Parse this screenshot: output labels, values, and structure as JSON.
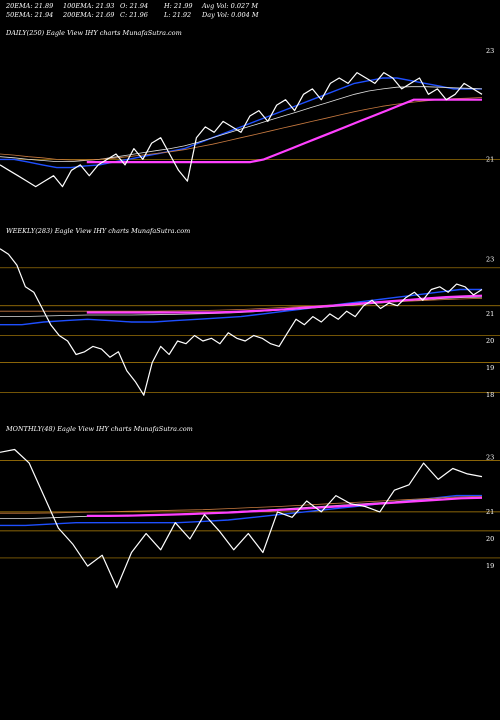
{
  "header": {
    "row1": [
      "20EMA: 21.89",
      "100EMA: 21.93",
      "O: 21.94",
      "H: 21.99",
      "Avg Vol: 0.027  M"
    ],
    "row2": [
      "50EMA: 21.94",
      "200EMA: 21.69",
      "C: 21.96",
      "L: 21.92",
      "Day Vol: 0.004  M"
    ]
  },
  "colors": {
    "background": "#000000",
    "price": "#ffffff",
    "ema_short": "#1e4fff",
    "ema_support": "#ff40ff",
    "ema_mid": "#e0e0e0",
    "ema_long": "#c87a40",
    "level_line": "#b8860b"
  },
  "chart_data": [
    {
      "type": "line",
      "label": "DAILY(250) Eagle   View  IHY charts MunafaSutra.com",
      "ylim": [
        20.4,
        23.2
      ],
      "yticks": [
        {
          "value": 23,
          "label": "23"
        },
        {
          "value": 21,
          "label": "21"
        }
      ],
      "levels": [
        21.0
      ],
      "price": [
        20.9,
        20.8,
        20.7,
        20.6,
        20.5,
        20.6,
        20.7,
        20.5,
        20.8,
        20.9,
        20.7,
        20.9,
        21.0,
        21.1,
        20.9,
        21.2,
        21.0,
        21.3,
        21.4,
        21.1,
        20.8,
        20.6,
        21.4,
        21.6,
        21.5,
        21.7,
        21.6,
        21.5,
        21.8,
        21.9,
        21.7,
        22.0,
        22.1,
        21.9,
        22.2,
        22.3,
        22.1,
        22.4,
        22.5,
        22.4,
        22.6,
        22.5,
        22.4,
        22.6,
        22.5,
        22.3,
        22.4,
        22.5,
        22.2,
        22.3,
        22.1,
        22.2,
        22.4,
        22.3,
        22.2
      ],
      "series": [
        {
          "role": "ema_short",
          "values": [
            21.0,
            21.0,
            20.95,
            20.9,
            20.85,
            20.85,
            20.88,
            20.9,
            20.95,
            21.0,
            21.05,
            21.1,
            21.15,
            21.2,
            21.3,
            21.4,
            21.5,
            21.6,
            21.7,
            21.8,
            21.9,
            22.0,
            22.1,
            22.2,
            22.3,
            22.4,
            22.45,
            22.5,
            22.5,
            22.45,
            22.4,
            22.35,
            22.3,
            22.3,
            22.3
          ]
        },
        {
          "role": "ema_mid",
          "values": [
            21.05,
            21.03,
            21.0,
            20.98,
            20.96,
            20.96,
            20.98,
            21.0,
            21.04,
            21.08,
            21.12,
            21.16,
            21.2,
            21.25,
            21.32,
            21.4,
            21.48,
            21.56,
            21.64,
            21.72,
            21.8,
            21.88,
            21.96,
            22.04,
            22.12,
            22.2,
            22.26,
            22.3,
            22.33,
            22.34,
            22.34,
            22.33,
            22.32,
            22.31,
            22.3
          ]
        },
        {
          "role": "ema_long",
          "values": [
            21.1,
            21.08,
            21.05,
            21.03,
            21.0,
            20.99,
            20.99,
            21.0,
            21.02,
            21.05,
            21.08,
            21.11,
            21.14,
            21.18,
            21.23,
            21.28,
            21.34,
            21.4,
            21.46,
            21.52,
            21.58,
            21.64,
            21.7,
            21.76,
            21.82,
            21.88,
            21.93,
            21.98,
            22.02,
            22.05,
            22.08,
            22.1,
            22.12,
            22.13,
            22.14
          ]
        },
        {
          "role": "ema_support",
          "values": [
            20.95,
            20.95,
            20.95,
            20.95,
            20.95,
            20.95,
            20.95,
            20.95,
            20.95,
            20.95,
            20.95,
            20.95,
            20.95,
            21.0,
            21.1,
            21.2,
            21.3,
            21.4,
            21.5,
            21.6,
            21.7,
            21.8,
            21.9,
            22.0,
            22.1,
            22.1,
            22.1,
            22.1,
            22.1,
            22.1
          ]
        }
      ]
    },
    {
      "type": "line",
      "label": "WEEKLY(283) Eagle   View  IHY charts MunafaSutra.com",
      "ylim": [
        17.6,
        23.8
      ],
      "yticks": [
        {
          "value": 23,
          "label": "23"
        },
        {
          "value": 21,
          "label": "21"
        },
        {
          "value": 20,
          "label": "20"
        },
        {
          "value": 19,
          "label": "19"
        },
        {
          "value": 18,
          "label": "18"
        }
      ],
      "levels": [
        22.7,
        21.3,
        20.2,
        19.2,
        18.1
      ],
      "price": [
        23.4,
        23.2,
        22.8,
        22.0,
        21.8,
        21.2,
        20.6,
        20.2,
        20.0,
        19.5,
        19.6,
        19.8,
        19.7,
        19.4,
        19.6,
        18.9,
        18.5,
        18.0,
        19.2,
        19.8,
        19.5,
        20.0,
        19.9,
        20.2,
        20.0,
        20.1,
        19.9,
        20.3,
        20.1,
        20.0,
        20.2,
        20.1,
        19.9,
        19.8,
        20.3,
        20.8,
        20.6,
        20.9,
        20.7,
        21.0,
        20.8,
        21.1,
        20.9,
        21.3,
        21.5,
        21.2,
        21.4,
        21.3,
        21.6,
        21.8,
        21.5,
        21.9,
        22.0,
        21.8,
        22.1,
        22.0,
        21.7,
        21.9
      ],
      "series": [
        {
          "role": "ema_short",
          "values": [
            20.6,
            20.6,
            20.7,
            20.75,
            20.8,
            20.75,
            20.7,
            20.7,
            20.75,
            20.8,
            20.85,
            20.9,
            21.0,
            21.1,
            21.2,
            21.3,
            21.4,
            21.5,
            21.6,
            21.7,
            21.8,
            21.9,
            21.9
          ]
        },
        {
          "role": "ema_mid",
          "values": [
            20.9,
            20.9,
            20.92,
            20.94,
            20.96,
            20.96,
            20.96,
            20.97,
            20.98,
            21.0,
            21.02,
            21.05,
            21.1,
            21.15,
            21.2,
            21.26,
            21.32,
            21.38,
            21.44,
            21.5,
            21.56,
            21.6,
            21.62
          ]
        },
        {
          "role": "ema_long",
          "values": [
            21.1,
            21.1,
            21.1,
            21.1,
            21.1,
            21.1,
            21.1,
            21.1,
            21.11,
            21.12,
            21.14,
            21.16,
            21.2,
            21.24,
            21.28,
            21.32,
            21.36,
            21.4,
            21.44,
            21.48,
            21.52,
            21.55,
            21.57
          ]
        },
        {
          "role": "ema_support",
          "values": [
            21.05,
            21.05,
            21.05,
            21.05,
            21.05,
            21.05,
            21.05,
            21.05,
            21.07,
            21.1,
            21.13,
            21.17,
            21.22,
            21.27,
            21.32,
            21.37,
            21.42,
            21.47,
            21.52,
            21.57,
            21.62,
            21.65,
            21.67
          ]
        }
      ]
    },
    {
      "type": "line",
      "label": "MONTHLY(48) Eagle   View  IHY charts MunafaSutra.com",
      "ylim": [
        17.6,
        23.8
      ],
      "yticks": [
        {
          "value": 23,
          "label": "23"
        },
        {
          "value": 21,
          "label": "21"
        },
        {
          "value": 20,
          "label": "20"
        },
        {
          "value": 19,
          "label": "19"
        }
      ],
      "levels": [
        22.9,
        21.0,
        20.3,
        19.3
      ],
      "price": [
        23.2,
        23.3,
        22.8,
        21.6,
        20.4,
        19.8,
        19.0,
        19.4,
        18.2,
        19.5,
        20.2,
        19.6,
        20.6,
        20.0,
        20.9,
        20.3,
        19.6,
        20.2,
        19.5,
        21.0,
        20.8,
        21.4,
        21.0,
        21.6,
        21.3,
        21.2,
        21.0,
        21.8,
        22.0,
        22.8,
        22.2,
        22.6,
        22.4,
        22.3
      ],
      "series": [
        {
          "role": "ema_short",
          "values": [
            20.5,
            20.5,
            20.55,
            20.6,
            20.6,
            20.6,
            20.6,
            20.6,
            20.65,
            20.7,
            20.8,
            20.9,
            21.0,
            21.1,
            21.2,
            21.3,
            21.4,
            21.5,
            21.6,
            21.6
          ]
        },
        {
          "role": "ema_mid",
          "values": [
            20.75,
            20.75,
            20.78,
            20.82,
            20.85,
            20.88,
            20.9,
            20.92,
            20.95,
            21.0,
            21.05,
            21.1,
            21.16,
            21.22,
            21.28,
            21.34,
            21.4,
            21.46,
            21.5,
            21.52
          ]
        },
        {
          "role": "ema_long",
          "values": [
            20.95,
            20.95,
            20.96,
            20.98,
            21.0,
            21.02,
            21.04,
            21.06,
            21.08,
            21.12,
            21.16,
            21.2,
            21.25,
            21.3,
            21.35,
            21.4,
            21.45,
            21.5,
            21.55,
            21.57
          ]
        },
        {
          "role": "ema_support",
          "values": [
            20.85,
            20.85,
            20.86,
            20.88,
            20.9,
            20.92,
            20.95,
            20.98,
            21.02,
            21.06,
            21.1,
            21.15,
            21.2,
            21.25,
            21.3,
            21.35,
            21.4,
            21.45,
            21.5,
            21.52
          ]
        }
      ]
    }
  ]
}
